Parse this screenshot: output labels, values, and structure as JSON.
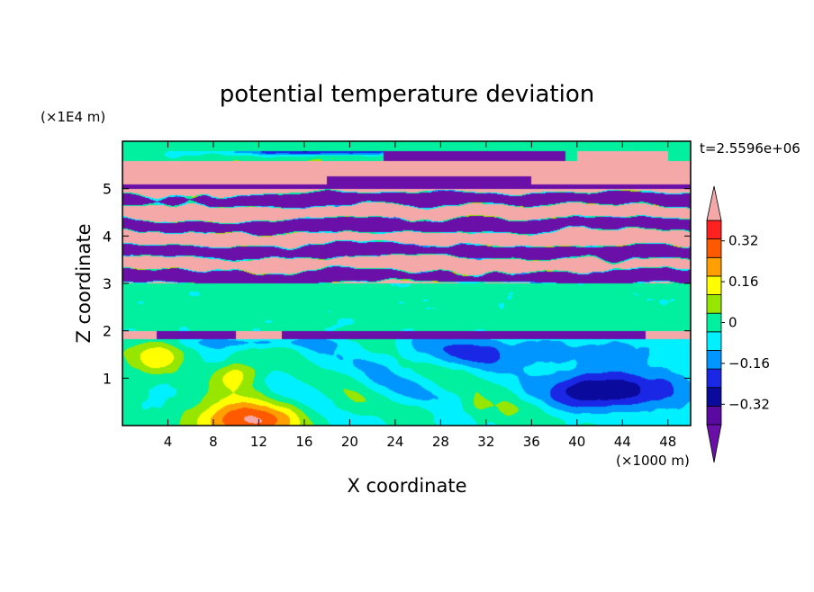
{
  "chart_data": {
    "type": "heatmap",
    "title": "potential temperature deviation",
    "time_label": "t=2.5596e+06",
    "xlabel": "X coordinate",
    "ylabel": "Z coordinate",
    "x_unit": "(×1000 m)",
    "y_unit": "(×1E4 m)",
    "xlim": [
      0,
      50
    ],
    "ylim": [
      0,
      6
    ],
    "x_ticks": [
      4,
      8,
      12,
      16,
      20,
      24,
      28,
      32,
      36,
      40,
      44,
      48
    ],
    "y_ticks": [
      1,
      2,
      3,
      4,
      5
    ],
    "colorbar": {
      "labels": [
        "0.32",
        "0.16",
        "0",
        "−0.16",
        "−0.32"
      ],
      "label_values": [
        0.32,
        0.16,
        0,
        -0.16,
        -0.32
      ],
      "levels": [
        -0.4,
        -0.32,
        -0.24,
        -0.16,
        -0.08,
        0,
        0.08,
        0.16,
        0.24,
        0.32,
        0.4
      ],
      "bin_colors": [
        "#5a0aa0",
        "#0a0a9c",
        "#1a28e6",
        "#0096ff",
        "#00f0ff",
        "#00f0a0",
        "#96e600",
        "#ffff00",
        "#ffa000",
        "#ff5a00",
        "#ff2020"
      ],
      "over_color": "#f5a8a8",
      "under_color": "#6a10a8",
      "extend": "both"
    },
    "field": {
      "description_of_structure": "banded field: mixed upper layer z 2-6, weak lower layer z 0-2",
      "dominant_pattern": [
        {
          "z_range": [
            5.0,
            6.0
          ],
          "value": "alternating over/under bands"
        },
        {
          "z_range": [
            3.0,
            5.0
          ],
          "value": "mixed over (pink) and under (purple)"
        },
        {
          "z_range": [
            2.0,
            3.0
          ],
          "value": 0.04
        },
        {
          "z_range": [
            1.85,
            2.0
          ],
          "value": -0.4
        },
        {
          "z_range": [
            0.0,
            1.85
          ],
          "value": "weak wave pattern, -0.3 to 0.3"
        }
      ]
    }
  }
}
